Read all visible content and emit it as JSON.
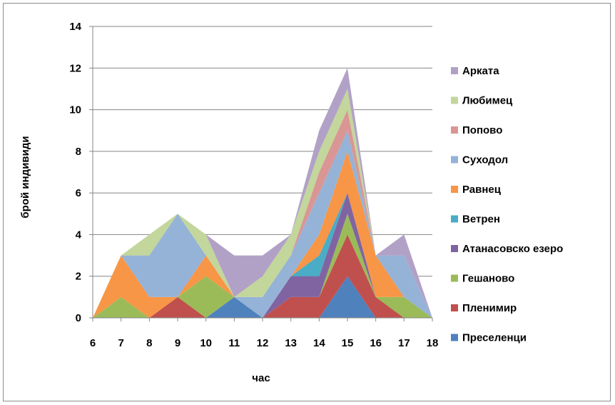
{
  "chart_data": {
    "type": "area",
    "stacked": true,
    "xlabel": "час",
    "ylabel": "брой индивиди",
    "ylim": [
      0,
      14
    ],
    "y_ticks": [
      0,
      2,
      4,
      6,
      8,
      10,
      12,
      14
    ],
    "x": [
      6,
      7,
      8,
      9,
      10,
      11,
      12,
      13,
      14,
      15,
      16,
      17,
      18
    ],
    "grid": "horizontal",
    "legend_position": "right",
    "series": [
      {
        "name": "Преселенци",
        "color": "#4f81bd",
        "values": [
          0,
          0,
          0,
          0,
          0,
          1,
          0,
          0,
          0,
          2,
          0,
          0,
          0
        ]
      },
      {
        "name": "Пленимир",
        "color": "#c0504d",
        "values": [
          0,
          0,
          0,
          1,
          0,
          0,
          0,
          1,
          1,
          2,
          1,
          0,
          0
        ]
      },
      {
        "name": "Гешаново",
        "color": "#9bbb59",
        "values": [
          0,
          1,
          0,
          0,
          2,
          0,
          0,
          0,
          0,
          1,
          0,
          1,
          0
        ]
      },
      {
        "name": "Атанасовско езеро",
        "color": "#8064a2",
        "values": [
          0,
          0,
          0,
          0,
          0,
          0,
          0,
          1,
          1,
          1,
          0,
          0,
          0
        ]
      },
      {
        "name": "Ветрен",
        "color": "#4bacc6",
        "values": [
          0,
          0,
          0,
          0,
          0,
          0,
          0,
          0,
          1,
          0,
          0,
          0,
          0
        ]
      },
      {
        "name": "Равнец",
        "color": "#f79646",
        "values": [
          0,
          2,
          1,
          0,
          1,
          0,
          0,
          0,
          1,
          2,
          2,
          0,
          0
        ]
      },
      {
        "name": "Суходол",
        "color": "#95b3d7",
        "values": [
          0,
          0,
          2,
          4,
          0,
          0,
          1,
          1,
          2,
          1,
          0,
          2,
          0
        ]
      },
      {
        "name": "Попово",
        "color": "#d99694",
        "values": [
          0,
          0,
          0,
          0,
          0,
          0,
          0,
          0,
          1,
          1,
          0,
          0,
          0
        ]
      },
      {
        "name": "Любимец",
        "color": "#c3d69b",
        "values": [
          0,
          0,
          1,
          0,
          1,
          0,
          1,
          1,
          1,
          1,
          0,
          0,
          0
        ]
      },
      {
        "name": "Арката",
        "color": "#b2a1c7",
        "values": [
          0,
          0,
          0,
          0,
          0,
          2,
          1,
          0,
          1,
          1,
          0,
          1,
          0
        ]
      }
    ]
  }
}
